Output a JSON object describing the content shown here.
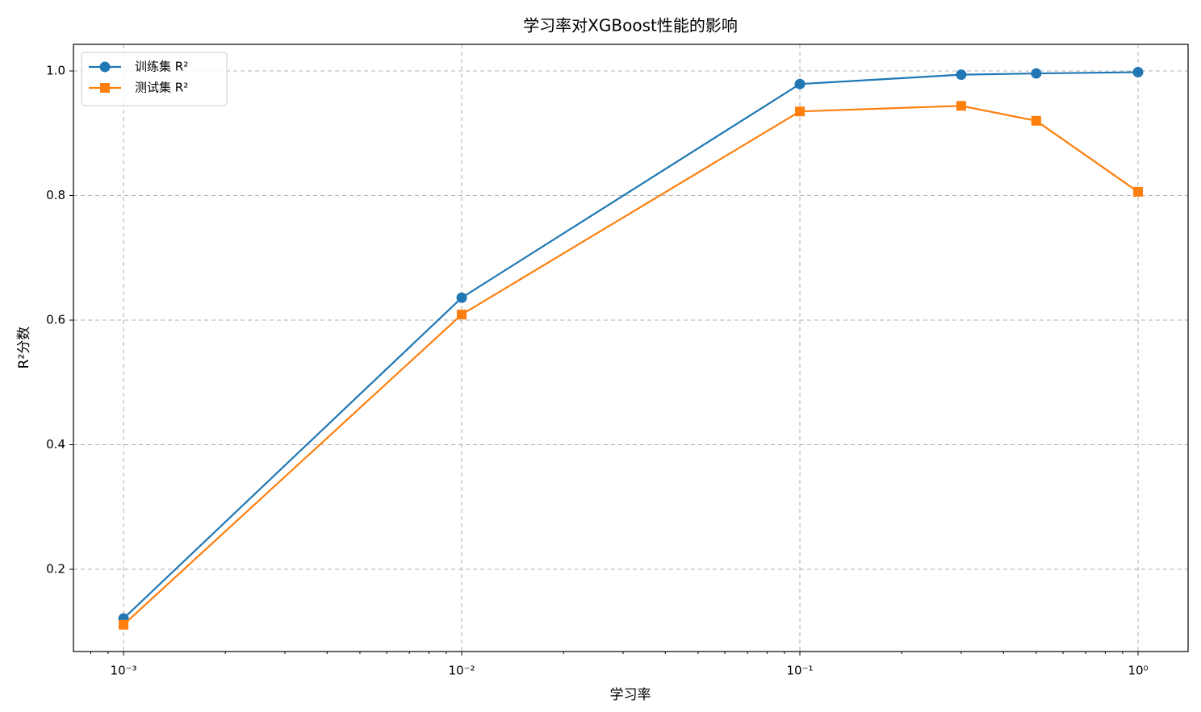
{
  "chart_data": {
    "type": "line",
    "title": "学习率对XGBoost性能的影响",
    "x_label": "学习率",
    "y_label": "R²分数",
    "x": [
      0.001,
      0.01,
      0.1,
      0.3,
      0.5,
      1.0
    ],
    "series": [
      {
        "name": "训练集 R²",
        "color": "#1f77b4",
        "marker": "circle",
        "values": [
          0.121,
          0.636,
          0.979,
          0.994,
          0.996,
          0.998
        ]
      },
      {
        "name": "测试集 R²",
        "color": "#ff7f0e",
        "marker": "square",
        "values": [
          0.111,
          0.609,
          0.935,
          0.944,
          0.92,
          0.806
        ]
      }
    ],
    "xscale": "log",
    "xlim": [
      0.000711,
      1.406
    ],
    "xticks": [
      {
        "value": 0.001,
        "label": "10⁻³"
      },
      {
        "value": 0.01,
        "label": "10⁻²"
      },
      {
        "value": 0.1,
        "label": "10⁻¹"
      },
      {
        "value": 1,
        "label": "10⁰"
      }
    ],
    "xminorticks": [
      0.0008,
      0.0009,
      0.002,
      0.003,
      0.004,
      0.005,
      0.006,
      0.007,
      0.008,
      0.009,
      0.02,
      0.03,
      0.04,
      0.05,
      0.06,
      0.07,
      0.08,
      0.09,
      0.2,
      0.3,
      0.4,
      0.5,
      0.6,
      0.7,
      0.8,
      0.9
    ],
    "ylim": [
      0.068,
      1.0427
    ],
    "yticks": [
      0.2,
      0.4,
      0.6,
      0.8,
      {
        "value": 1.0,
        "label": "1.0"
      }
    ],
    "grid": true,
    "legend": "upper left"
  }
}
